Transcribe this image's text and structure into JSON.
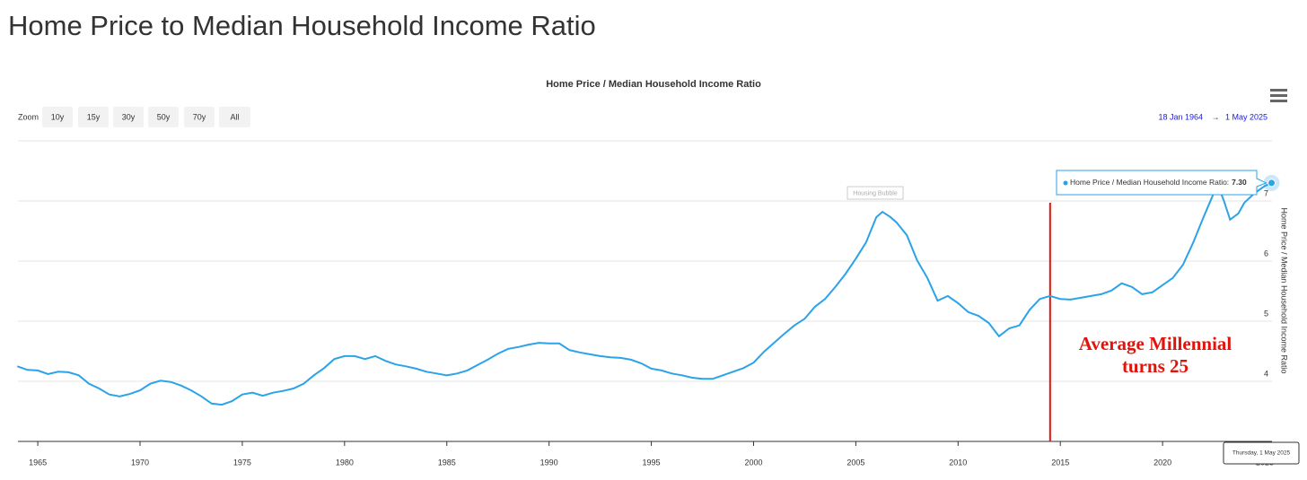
{
  "page": {
    "title": "Home Price to Median Household Income Ratio",
    "zoom_label": "Zoom",
    "zoom_buttons": [
      "10y",
      "15y",
      "30y",
      "50y",
      "70y",
      "All"
    ],
    "range_from": "18 Jan 1964",
    "range_arrow": "→",
    "range_to": "1 May 2025"
  },
  "chart_data": {
    "type": "line",
    "title": "Home Price / Median Household Income Ratio",
    "y_label": "Home Price / Median Household Income Ratio",
    "x": [
      1964.0,
      1964.5,
      1965,
      1965.5,
      1966,
      1966.5,
      1967,
      1967.5,
      1968,
      1968.5,
      1969,
      1969.5,
      1970,
      1970.5,
      1971,
      1971.5,
      1972,
      1972.5,
      1973,
      1973.5,
      1974,
      1974.5,
      1975,
      1975.5,
      1976,
      1976.5,
      1977,
      1977.5,
      1978,
      1978.5,
      1979,
      1979.5,
      1980,
      1980.5,
      1981,
      1981.5,
      1982,
      1982.5,
      1983,
      1983.5,
      1984,
      1984.5,
      1985,
      1985.5,
      1986,
      1986.5,
      1987,
      1987.5,
      1988,
      1988.5,
      1989,
      1989.5,
      1990,
      1990.5,
      1991,
      1991.5,
      1992,
      1992.5,
      1993,
      1993.5,
      1994,
      1994.5,
      1995,
      1995.5,
      1996,
      1996.5,
      1997,
      1997.5,
      1998,
      1998.5,
      1999,
      1999.5,
      2000,
      2000.5,
      2001,
      2001.5,
      2002,
      2002.5,
      2003,
      2003.5,
      2004,
      2004.5,
      2005,
      2005.5,
      2006,
      2006.3,
      2006.7,
      2007,
      2007.5,
      2008,
      2008.5,
      2009,
      2009.5,
      2010,
      2010.5,
      2011,
      2011.5,
      2012,
      2012.5,
      2013,
      2013.5,
      2014,
      2014.5,
      2015,
      2015.5,
      2016,
      2016.5,
      2017,
      2017.5,
      2018,
      2018.5,
      2019,
      2019.5,
      2020,
      2020.5,
      2021,
      2021.5,
      2022,
      2022.5,
      2022.8,
      2023,
      2023.3,
      2023.7,
      2024,
      2024.5,
      2025,
      2025.33
    ],
    "series": [
      {
        "name": "Home Price / Median Household Income Ratio",
        "color": "#2ba3e8",
        "values": [
          4.25,
          4.19,
          4.18,
          4.12,
          4.16,
          4.15,
          4.1,
          3.96,
          3.88,
          3.78,
          3.75,
          3.79,
          3.85,
          3.96,
          4.01,
          3.99,
          3.93,
          3.85,
          3.75,
          3.63,
          3.61,
          3.67,
          3.78,
          3.81,
          3.76,
          3.81,
          3.84,
          3.88,
          3.96,
          4.1,
          4.22,
          4.37,
          4.42,
          4.42,
          4.37,
          4.42,
          4.34,
          4.28,
          4.25,
          4.21,
          4.16,
          4.13,
          4.1,
          4.13,
          4.18,
          4.27,
          4.36,
          4.46,
          4.54,
          4.57,
          4.61,
          4.64,
          4.63,
          4.63,
          4.52,
          4.48,
          4.45,
          4.42,
          4.4,
          4.39,
          4.36,
          4.3,
          4.21,
          4.18,
          4.13,
          4.1,
          4.06,
          4.04,
          4.04,
          4.1,
          4.16,
          4.22,
          4.31,
          4.49,
          4.64,
          4.79,
          4.93,
          5.04,
          5.24,
          5.37,
          5.57,
          5.79,
          6.04,
          6.31,
          6.73,
          6.82,
          6.73,
          6.64,
          6.43,
          6.01,
          5.72,
          5.34,
          5.42,
          5.3,
          5.15,
          5.09,
          4.97,
          4.75,
          4.88,
          4.93,
          5.19,
          5.37,
          5.42,
          5.37,
          5.36,
          5.39,
          5.42,
          5.45,
          5.51,
          5.63,
          5.57,
          5.45,
          5.48,
          5.6,
          5.72,
          5.94,
          6.31,
          6.73,
          7.13,
          7.18,
          7.0,
          6.69,
          6.79,
          6.97,
          7.13,
          7.25,
          7.3
        ]
      }
    ],
    "xlim": [
      1964.03,
      2025.35
    ],
    "xticks": [
      1965,
      1970,
      1975,
      1980,
      1985,
      1990,
      1995,
      2000,
      2005,
      2010,
      2015,
      2020,
      2025
    ],
    "ylim": [
      3,
      8
    ],
    "yticks": [
      4,
      5,
      6,
      7
    ],
    "grid": true,
    "flag": {
      "x": 2005.95,
      "text": "Housing Bubble"
    },
    "marker_line": {
      "x": 2014.5,
      "color": "#e0140c",
      "lines": [
        "Average Millennial",
        "turns 25"
      ]
    },
    "tooltip": {
      "text": "Home Price / Median Household Income Ratio:",
      "value": "7.30",
      "date": "Thursday, 1 May 2025"
    }
  }
}
